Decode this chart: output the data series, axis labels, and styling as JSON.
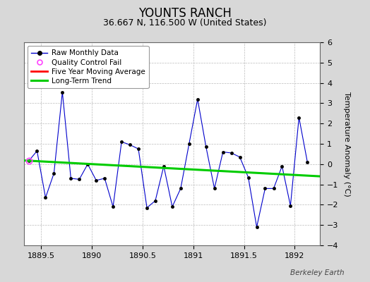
{
  "title": "YOUNTS RANCH",
  "subtitle": "36.667 N, 116.500 W (United States)",
  "ylabel": "Temperature Anomaly (°C)",
  "credit": "Berkeley Earth",
  "background_color": "#d8d8d8",
  "plot_background": "#ffffff",
  "xlim": [
    1889.33,
    1892.25
  ],
  "ylim": [
    -4,
    6
  ],
  "yticks": [
    -4,
    -3,
    -2,
    -1,
    0,
    1,
    2,
    3,
    4,
    5,
    6
  ],
  "xticks": [
    1889.5,
    1890.0,
    1890.5,
    1891.0,
    1891.5,
    1892.0
  ],
  "xticklabels": [
    "1889.5",
    "1890",
    "1890.5",
    "1891",
    "1891.5",
    "1892"
  ],
  "raw_x": [
    1889.375,
    1889.458,
    1889.542,
    1889.625,
    1889.708,
    1889.792,
    1889.875,
    1889.958,
    1890.042,
    1890.125,
    1890.208,
    1890.292,
    1890.375,
    1890.458,
    1890.542,
    1890.625,
    1890.708,
    1890.792,
    1890.875,
    1890.958,
    1891.042,
    1891.125,
    1891.208,
    1891.292,
    1891.375,
    1891.458,
    1891.542,
    1891.625,
    1891.708,
    1891.792,
    1891.875,
    1891.958,
    1892.042,
    1892.125
  ],
  "raw_y": [
    0.15,
    0.65,
    -1.65,
    -0.45,
    3.55,
    -0.7,
    -0.75,
    0.0,
    -0.8,
    -0.7,
    -2.1,
    1.1,
    0.95,
    0.75,
    -2.15,
    -1.8,
    -0.1,
    -2.1,
    -1.2,
    1.0,
    3.2,
    0.85,
    -1.2,
    0.6,
    0.55,
    0.35,
    -0.65,
    -3.1,
    -1.2,
    -1.2,
    -0.1,
    -2.05,
    2.3,
    0.1
  ],
  "qc_fail_x": [
    1889.375
  ],
  "qc_fail_y": [
    0.15
  ],
  "trend_x": [
    1889.33,
    1892.25
  ],
  "trend_y": [
    0.18,
    -0.6
  ],
  "line_color": "#0000cc",
  "marker_color": "#000000",
  "qc_color": "#ff44ff",
  "trend_color": "#00cc00",
  "moving_avg_color": "#ff0000",
  "grid_color": "#bbbbbb",
  "title_fontsize": 12,
  "subtitle_fontsize": 9,
  "label_fontsize": 8,
  "tick_fontsize": 8,
  "legend_fontsize": 7.5,
  "credit_fontsize": 7.5
}
